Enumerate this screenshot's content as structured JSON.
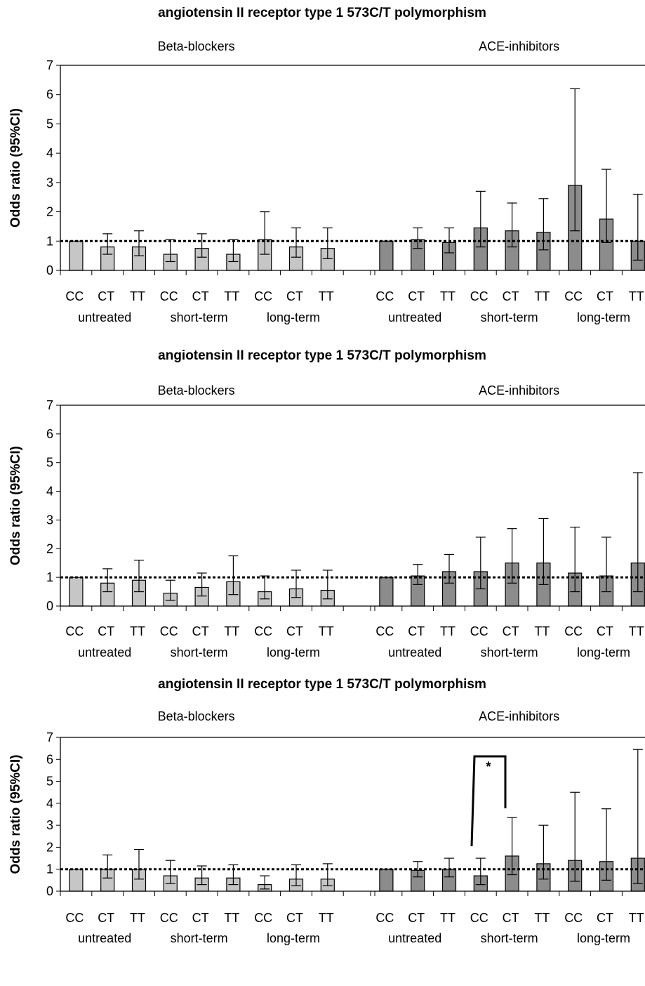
{
  "colors": {
    "beta": "#c6c6c6",
    "ace": "#8c8c8c",
    "axis": "#000000",
    "reference": "#000000"
  },
  "chart_data": [
    {
      "type": "bar",
      "title": "angiotensin II receptor type 1 573C/T polymorphism",
      "ylabel": "Odds ratio (95%CI)",
      "ylim": [
        0,
        7
      ],
      "yticks": [
        "0",
        "1",
        "2",
        "3",
        "4",
        "5",
        "6",
        "7"
      ],
      "reference_line": 1,
      "genotypes": [
        "CC",
        "CT",
        "TT"
      ],
      "periods": [
        "untreated",
        "short-term",
        "long-term"
      ],
      "panels": [
        {
          "label": "Beta-blockers",
          "series_color": "beta",
          "values": [
            1.0,
            0.8,
            0.8,
            0.55,
            0.75,
            0.55,
            1.05,
            0.8,
            0.75
          ],
          "ci_low": [
            1.0,
            0.55,
            0.5,
            0.3,
            0.45,
            0.3,
            0.55,
            0.45,
            0.4
          ],
          "ci_high": [
            1.0,
            1.25,
            1.35,
            1.05,
            1.25,
            1.05,
            2.0,
            1.45,
            1.45
          ]
        },
        {
          "label": "ACE-inhibitors",
          "series_color": "ace",
          "values": [
            1.0,
            1.05,
            0.95,
            1.45,
            1.35,
            1.3,
            2.9,
            1.75,
            1.0
          ],
          "ci_low": [
            1.0,
            0.75,
            0.6,
            0.8,
            0.8,
            0.7,
            1.35,
            0.95,
            0.35
          ],
          "ci_high": [
            1.0,
            1.45,
            1.45,
            2.7,
            2.3,
            2.45,
            6.2,
            3.45,
            2.6
          ]
        }
      ]
    },
    {
      "type": "bar",
      "title": "angiotensin II receptor type 1 573C/T polymorphism",
      "ylabel": "Odds ratio (95%CI)",
      "ylim": [
        0,
        7
      ],
      "yticks": [
        "0",
        "1",
        "2",
        "3",
        "4",
        "5",
        "6",
        "7"
      ],
      "reference_line": 1,
      "genotypes": [
        "CC",
        "CT",
        "TT"
      ],
      "periods": [
        "untreated",
        "short-term",
        "long-term"
      ],
      "panels": [
        {
          "label": "Beta-blockers",
          "series_color": "beta",
          "values": [
            1.0,
            0.8,
            0.9,
            0.45,
            0.65,
            0.85,
            0.5,
            0.6,
            0.55
          ],
          "ci_low": [
            1.0,
            0.5,
            0.5,
            0.2,
            0.35,
            0.4,
            0.25,
            0.3,
            0.25
          ],
          "ci_high": [
            1.0,
            1.3,
            1.6,
            0.9,
            1.15,
            1.75,
            1.05,
            1.25,
            1.25
          ]
        },
        {
          "label": "ACE-inhibitors",
          "series_color": "ace",
          "values": [
            1.0,
            1.05,
            1.2,
            1.2,
            1.5,
            1.5,
            1.15,
            1.05,
            1.5
          ],
          "ci_low": [
            1.0,
            0.75,
            0.8,
            0.6,
            0.8,
            0.75,
            0.5,
            0.5,
            0.5
          ],
          "ci_high": [
            1.0,
            1.45,
            1.8,
            2.4,
            2.7,
            3.05,
            2.75,
            2.4,
            4.65
          ]
        }
      ]
    },
    {
      "type": "bar",
      "title": "angiotensin II receptor type 1 573C/T polymorphism",
      "ylabel": "Odds ratio (95%CI)",
      "ylim": [
        0,
        7
      ],
      "yticks": [
        "0",
        "1",
        "2",
        "3",
        "4",
        "5",
        "6",
        "7"
      ],
      "reference_line": 1,
      "genotypes": [
        "CC",
        "CT",
        "TT"
      ],
      "periods": [
        "untreated",
        "short-term",
        "long-term"
      ],
      "significance": {
        "label": "*"
      },
      "panels": [
        {
          "label": "Beta-blockers",
          "series_color": "beta",
          "values": [
            1.0,
            1.0,
            1.0,
            0.7,
            0.6,
            0.6,
            0.3,
            0.55,
            0.55
          ],
          "ci_low": [
            1.0,
            0.6,
            0.55,
            0.35,
            0.3,
            0.3,
            0.1,
            0.25,
            0.25
          ],
          "ci_high": [
            1.0,
            1.65,
            1.9,
            1.4,
            1.15,
            1.2,
            0.7,
            1.2,
            1.25
          ]
        },
        {
          "label": "ACE-inhibitors",
          "series_color": "ace",
          "values": [
            1.0,
            0.95,
            1.0,
            0.7,
            1.6,
            1.25,
            1.4,
            1.35,
            1.5
          ],
          "ci_low": [
            1.0,
            0.65,
            0.65,
            0.3,
            0.75,
            0.55,
            0.45,
            0.5,
            0.35
          ],
          "ci_high": [
            1.0,
            1.35,
            1.5,
            1.5,
            3.35,
            3.0,
            4.5,
            3.75,
            6.45
          ]
        }
      ]
    }
  ]
}
